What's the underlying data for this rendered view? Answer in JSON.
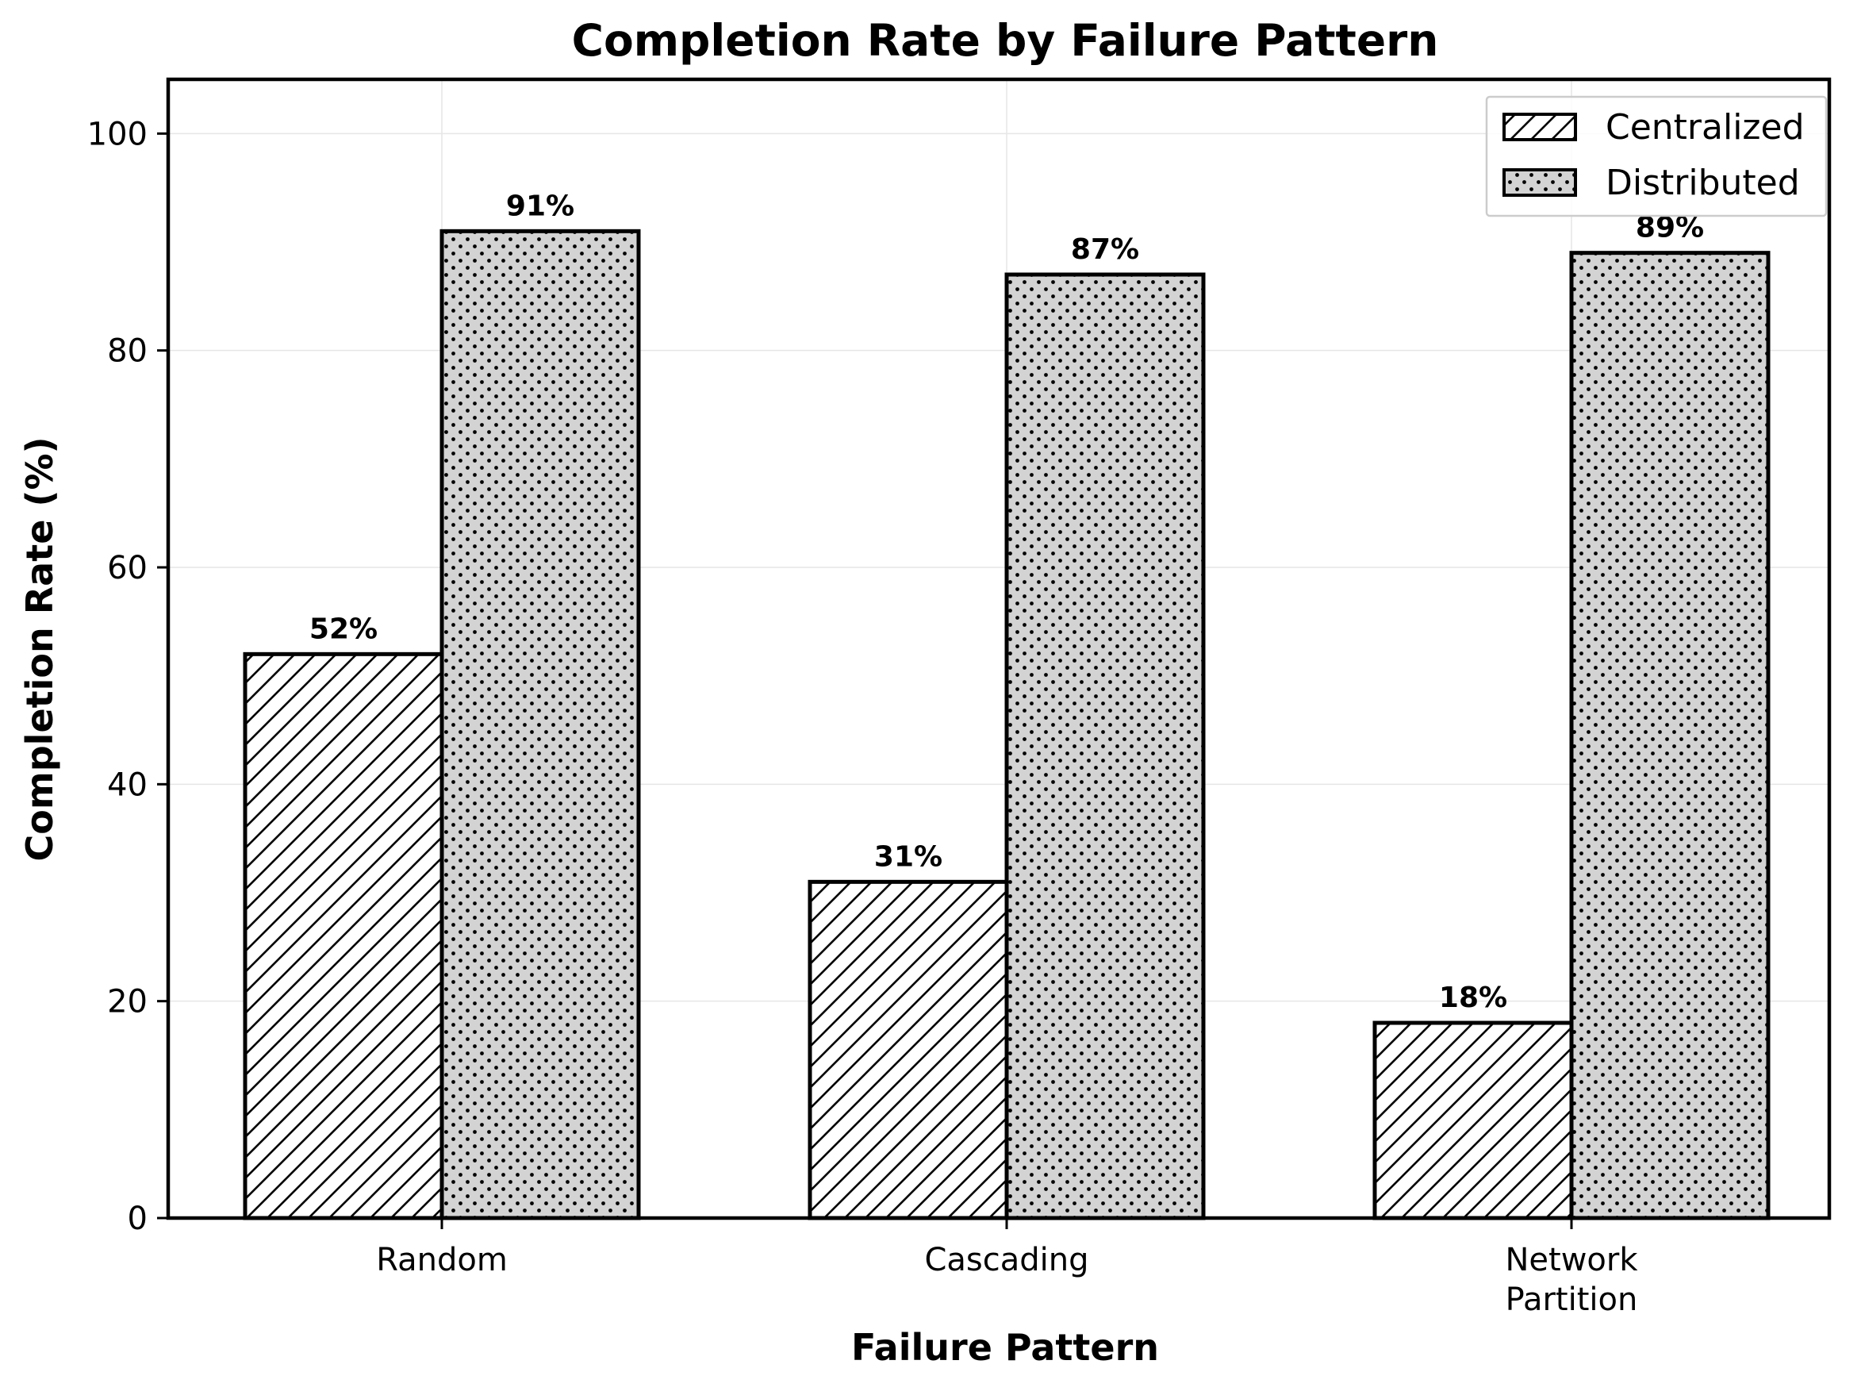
{
  "chart_data": {
    "type": "bar",
    "title": "Completion Rate by Failure Pattern",
    "xlabel": "Failure Pattern",
    "ylabel": "Completion Rate (%)",
    "categories": [
      [
        "Random"
      ],
      [
        "Cascading"
      ],
      [
        "Network",
        "Partition"
      ]
    ],
    "series": [
      {
        "name": "Centralized",
        "values": [
          52,
          31,
          18
        ],
        "labels": [
          "52%",
          "31%",
          "18%"
        ],
        "pattern": "diagonal-hatch",
        "color": "#ffffff"
      },
      {
        "name": "Distributed",
        "values": [
          91,
          87,
          89
        ],
        "labels": [
          "91%",
          "87%",
          "89%"
        ],
        "pattern": "dotted",
        "color": "#d3d3d3"
      }
    ],
    "ylim": [
      0,
      105
    ],
    "yticks": [
      0,
      20,
      40,
      60,
      80,
      100
    ],
    "grid": true,
    "legend_position": "top-right"
  }
}
